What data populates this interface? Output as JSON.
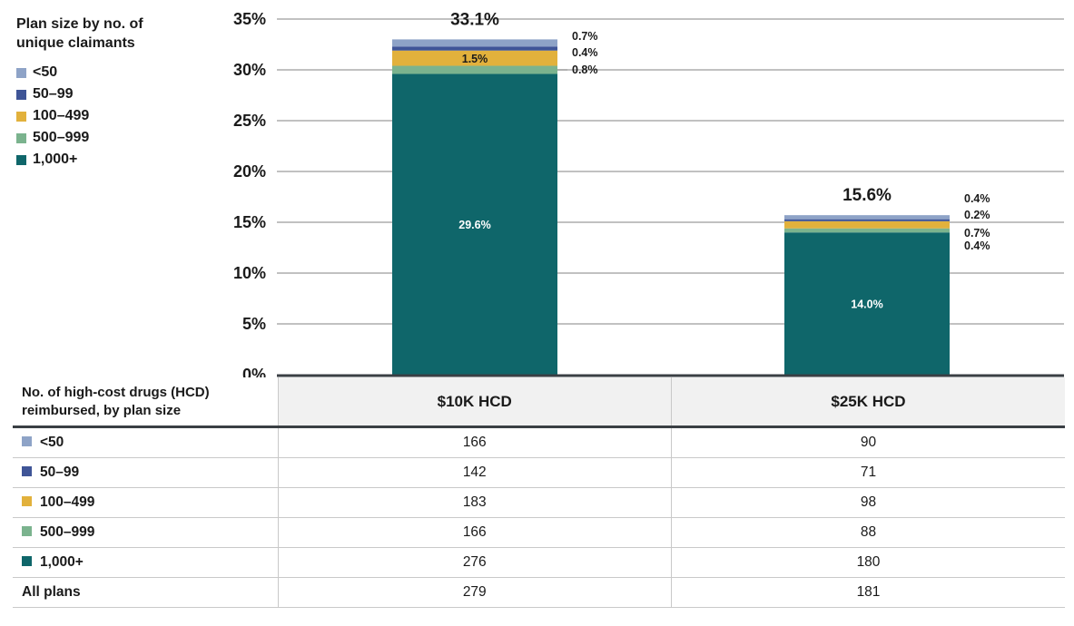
{
  "legend": {
    "title_line1": "Plan size by no. of",
    "title_line2": "unique claimants",
    "items": [
      {
        "label": "<50",
        "color": "#8ea3c7"
      },
      {
        "label": "50–99",
        "color": "#3f5597"
      },
      {
        "label": "100–499",
        "color": "#e2b13c"
      },
      {
        "label": "500–999",
        "color": "#7bb38e"
      },
      {
        "label": "1,000+",
        "color": "#0f666a"
      }
    ]
  },
  "chart_data": {
    "type": "bar",
    "stacked": true,
    "categories": [
      "$10K HCD",
      "$25K HCD"
    ],
    "ylim": [
      0,
      35
    ],
    "yticks": [
      "0%",
      "5%",
      "10%",
      "15%",
      "20%",
      "25%",
      "30%",
      "35%"
    ],
    "totals": [
      "33.1%",
      "15.6%"
    ],
    "series": [
      {
        "name": "1,000+",
        "values": [
          29.6,
          14.0
        ],
        "labels": [
          "29.6%",
          "14.0%"
        ],
        "color": "#0f666a"
      },
      {
        "name": "500–999",
        "values": [
          0.8,
          0.4
        ],
        "labels": [
          "0.8%",
          "0.4%"
        ],
        "color": "#7bb38e"
      },
      {
        "name": "100–499",
        "values": [
          1.5,
          0.7
        ],
        "labels": [
          "1.5%",
          "0.7%"
        ],
        "color": "#e2b13c"
      },
      {
        "name": "50–99",
        "values": [
          0.4,
          0.2
        ],
        "labels": [
          "0.4%",
          "0.2%"
        ],
        "color": "#3f5597"
      },
      {
        "name": "<50",
        "values": [
          0.7,
          0.4
        ],
        "labels": [
          "0.7%",
          "0.4%"
        ],
        "color": "#8ea3c7"
      }
    ]
  },
  "table": {
    "header_line1": "No. of high-cost drugs (HCD)",
    "header_line2": "reimbursed, by plan size",
    "columns": [
      "$10K HCD",
      "$25K HCD"
    ],
    "rows": [
      {
        "label": "<50",
        "color": "#8ea3c7",
        "values": [
          "166",
          "90"
        ]
      },
      {
        "label": "50–99",
        "color": "#3f5597",
        "values": [
          "142",
          "71"
        ]
      },
      {
        "label": "100–499",
        "color": "#e2b13c",
        "values": [
          "183",
          "98"
        ]
      },
      {
        "label": "500–999",
        "color": "#7bb38e",
        "values": [
          "166",
          "88"
        ]
      },
      {
        "label": "1,000+",
        "color": "#0f666a",
        "values": [
          "276",
          "180"
        ]
      },
      {
        "label": "All plans",
        "values": [
          "279",
          "181"
        ]
      }
    ]
  }
}
